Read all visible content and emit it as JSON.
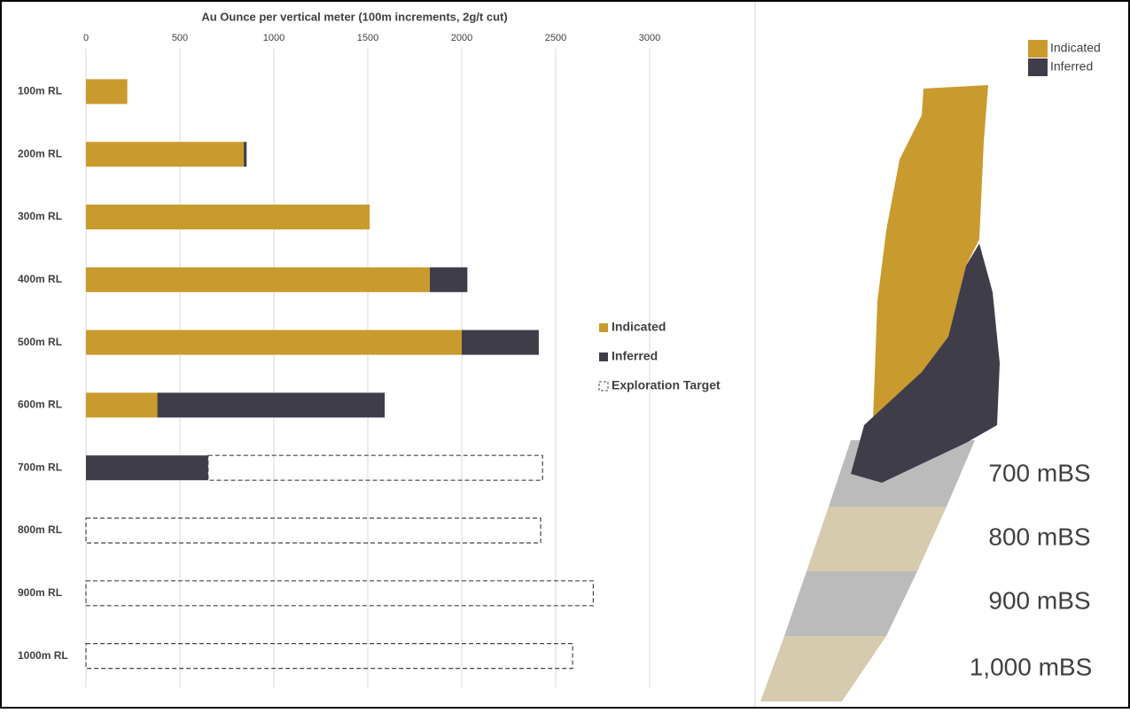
{
  "chart_data": {
    "type": "stacked-barh",
    "title": "Au Ounce per vertical meter (100m increments, 2g/t cut)",
    "categories": [
      "100m RL",
      "200m RL",
      "300m RL",
      "400m RL",
      "500m RL",
      "600m RL",
      "700m RL",
      "800m RL",
      "900m RL",
      "1000m RL"
    ],
    "series": [
      {
        "name": "Indicated",
        "color": "#c99a2e",
        "values": [
          220,
          840,
          1510,
          1830,
          2000,
          380,
          0,
          0,
          0,
          0
        ]
      },
      {
        "name": "Inferred",
        "color": "#3f3d4a",
        "values": [
          0,
          15,
          0,
          200,
          410,
          1210,
          650,
          0,
          0,
          0
        ]
      },
      {
        "name": "Exploration Target",
        "color": "#444444",
        "dashed": true,
        "values": [
          0,
          0,
          0,
          0,
          0,
          0,
          1780,
          2420,
          2700,
          2590
        ]
      }
    ],
    "xlim": [
      0,
      3500
    ],
    "xticks": [
      0,
      500,
      1000,
      1500,
      2000,
      2500,
      3000
    ],
    "grid": true
  },
  "diagram": {
    "depth_labels": [
      "700 mBS",
      "800 mBS",
      "900 mBS",
      "1,000 mBS"
    ]
  }
}
